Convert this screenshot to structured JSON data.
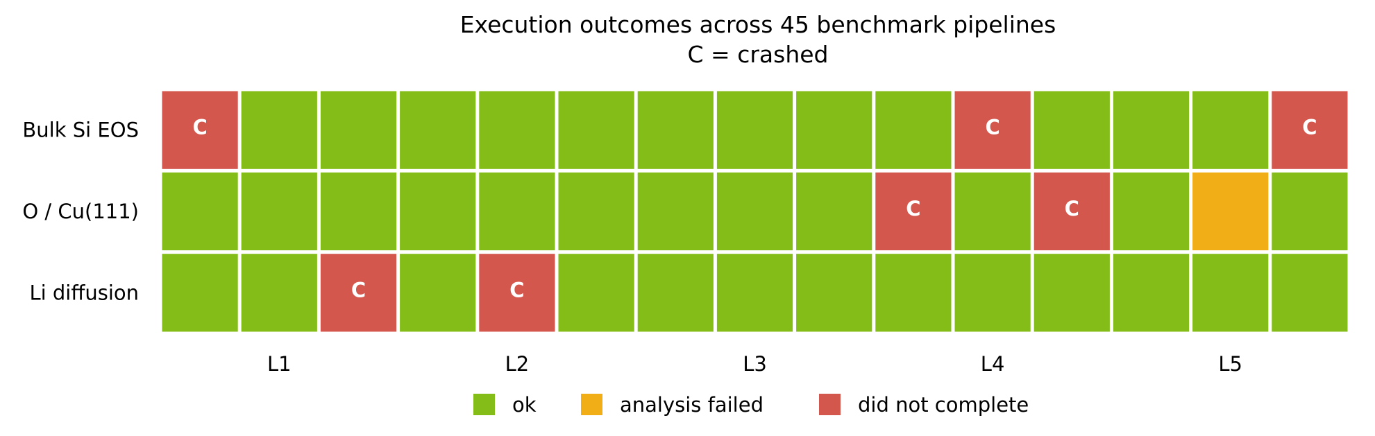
{
  "chart_data": {
    "type": "heatmap",
    "title": "Execution outcomes across 45 benchmark pipelines",
    "subtitle": "C = crashed",
    "rows": [
      "Bulk Si EOS",
      "O / Cu(111)",
      "Li diffusion"
    ],
    "column_groups": [
      "L1",
      "L2",
      "L3",
      "L4",
      "L5"
    ],
    "columns_per_group": 3,
    "status_colors": {
      "ok": "#84bd18",
      "analysis_failed": "#f2ae17",
      "did_not_complete": "#d4574e"
    },
    "legend": [
      {
        "key": "ok",
        "label": "ok"
      },
      {
        "key": "analysis_failed",
        "label": "analysis failed"
      },
      {
        "key": "did_not_complete",
        "label": "did not complete"
      }
    ],
    "legend_placement": "bottom-center",
    "cell_mark_text": "C",
    "cells": [
      [
        "did_not_complete",
        "ok",
        "ok",
        "ok",
        "ok",
        "ok",
        "ok",
        "ok",
        "ok",
        "ok",
        "did_not_complete",
        "ok",
        "ok",
        "ok",
        "did_not_complete"
      ],
      [
        "ok",
        "ok",
        "ok",
        "ok",
        "ok",
        "ok",
        "ok",
        "ok",
        "ok",
        "did_not_complete",
        "ok",
        "did_not_complete",
        "ok",
        "analysis_failed",
        "ok"
      ],
      [
        "ok",
        "ok",
        "did_not_complete",
        "ok",
        "did_not_complete",
        "ok",
        "ok",
        "ok",
        "ok",
        "ok",
        "ok",
        "ok",
        "ok",
        "ok",
        "ok"
      ]
    ],
    "crashed": [
      [
        true,
        false,
        false,
        false,
        false,
        false,
        false,
        false,
        false,
        false,
        true,
        false,
        false,
        false,
        true
      ],
      [
        false,
        false,
        false,
        false,
        false,
        false,
        false,
        false,
        false,
        true,
        false,
        true,
        false,
        false,
        false
      ],
      [
        false,
        false,
        true,
        false,
        true,
        false,
        false,
        false,
        false,
        false,
        false,
        false,
        false,
        false,
        false
      ]
    ],
    "grid": false
  }
}
